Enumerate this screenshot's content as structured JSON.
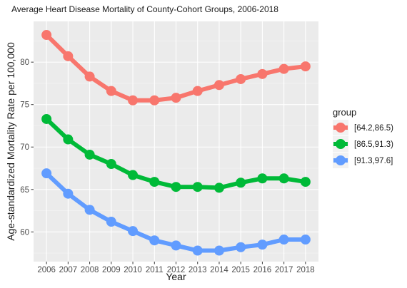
{
  "chart_data": {
    "type": "line",
    "title": "Average Heart Disease Mortality of County-Cohort Groups, 2006-2018",
    "xlabel": "Year",
    "ylabel": "Age-standardized Mortality Rate per 100,000",
    "x": [
      2006,
      2007,
      2008,
      2009,
      2010,
      2011,
      2012,
      2013,
      2014,
      2015,
      2016,
      2017,
      2018
    ],
    "xlim": [
      2005.4,
      2018.6
    ],
    "ylim": [
      56.5,
      84.8
    ],
    "yticks": [
      60,
      65,
      70,
      75,
      80
    ],
    "grid": true,
    "legend": {
      "title": "group",
      "position": "right"
    },
    "series": [
      {
        "name": "[64.2,86.5)",
        "color": "#F8766D",
        "values": [
          83.2,
          80.7,
          78.3,
          76.6,
          75.5,
          75.5,
          75.8,
          76.6,
          77.3,
          78.0,
          78.6,
          79.2,
          79.5
        ]
      },
      {
        "name": "[86.5,91.3)",
        "color": "#00BA38",
        "values": [
          73.3,
          70.9,
          69.1,
          68.0,
          66.7,
          65.9,
          65.3,
          65.3,
          65.2,
          65.8,
          66.3,
          66.3,
          65.9
        ]
      },
      {
        "name": "[91.3,97.6]",
        "color": "#619CFF",
        "values": [
          66.9,
          64.5,
          62.6,
          61.2,
          60.1,
          59.0,
          58.4,
          57.8,
          57.8,
          58.2,
          58.5,
          59.1,
          59.1
        ]
      }
    ]
  }
}
